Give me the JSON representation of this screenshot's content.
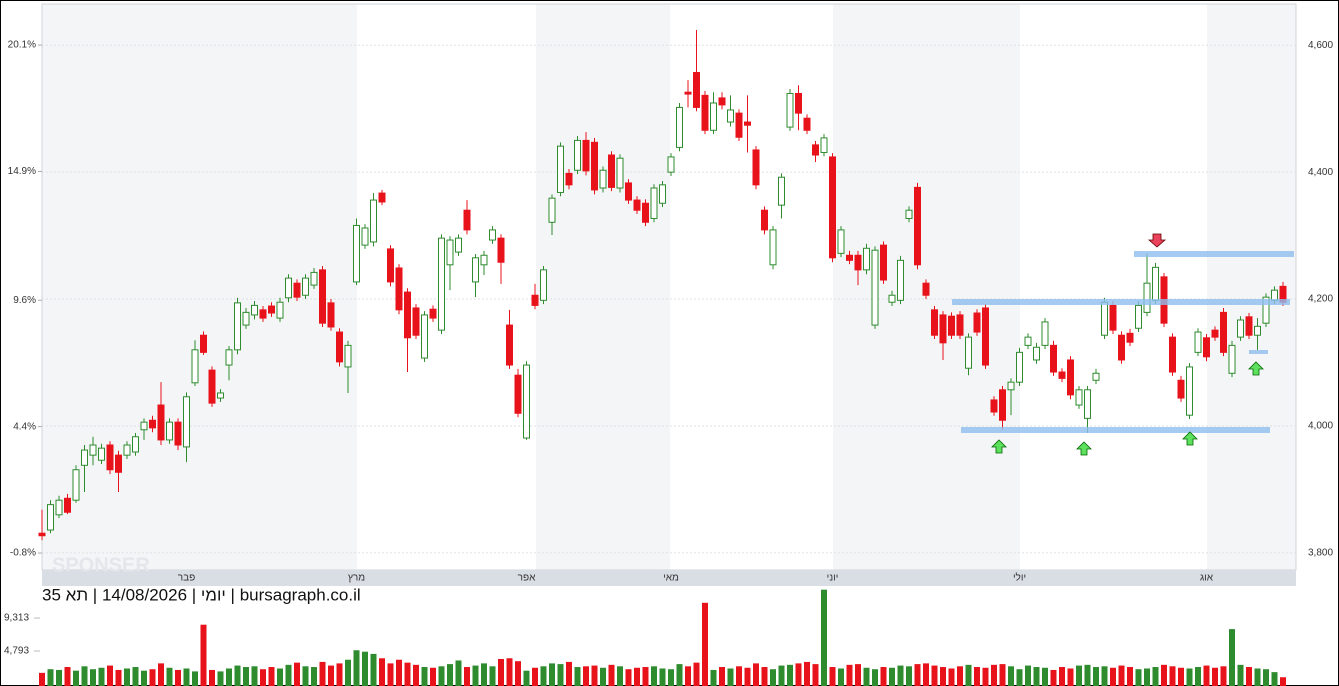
{
  "chart_data": {
    "type": "candlestick",
    "caption": "יומי | 14/08/2026 | תא 35 | bursagraph.co.il",
    "watermark": "SPONSER",
    "categories": [
      null,
      null,
      null,
      null,
      null,
      null,
      null,
      null,
      null,
      null,
      null,
      null,
      null,
      null,
      null,
      null,
      null,
      "פבר",
      null,
      null,
      null,
      null,
      null,
      null,
      null,
      null,
      null,
      null,
      null,
      null,
      null,
      null,
      null,
      null,
      null,
      null,
      null,
      "מרץ",
      null,
      null,
      null,
      null,
      null,
      null,
      null,
      null,
      null,
      null,
      null,
      null,
      null,
      null,
      null,
      null,
      null,
      null,
      null,
      "אפר",
      null,
      null,
      null,
      null,
      null,
      null,
      null,
      null,
      null,
      null,
      null,
      null,
      null,
      null,
      null,
      null,
      "מאי",
      null,
      null,
      null,
      null,
      null,
      null,
      null,
      null,
      null,
      null,
      null,
      null,
      null,
      null,
      null,
      null,
      null,
      null,
      "יוני",
      null,
      null,
      null,
      null,
      null,
      null,
      null,
      null,
      null,
      null,
      null,
      null,
      null,
      null,
      null,
      null,
      null,
      null,
      null,
      null,
      null,
      "יולי",
      null,
      null,
      null,
      null,
      null,
      null,
      null,
      null,
      null,
      null,
      null,
      null,
      null,
      null,
      null,
      null,
      null,
      null,
      null,
      null,
      null,
      "אוג",
      null,
      null,
      null,
      null,
      null,
      null,
      null,
      null,
      null
    ],
    "open": [
      3831,
      3836,
      3860,
      3886,
      3883,
      3938,
      3954,
      3946,
      3970,
      3954,
      3954,
      3959,
      3994,
      4009,
      4033,
      3978,
      4006,
      3967,
      4068,
      4143,
      4088,
      4044,
      4096,
      4120,
      4159,
      4175,
      4183,
      4189,
      4170,
      4202,
      4225,
      4206,
      4222,
      4246,
      4194,
      4148,
      4093,
      4227,
      4285,
      4290,
      4367,
      4279,
      4249,
      4211,
      4186,
      4107,
      4184,
      4151,
      4254,
      4274,
      4340,
      4227,
      4254,
      4293,
      4296,
      4159,
      4080,
      3981,
      4206,
      4198,
      4321,
      4368,
      4398,
      4403,
      4450,
      4447,
      4375,
      4427,
      4375,
      4383,
      4356,
      4351,
      4327,
      4351,
      4400,
      4439,
      4526,
      4557,
      4521,
      4466,
      4517,
      4479,
      4493,
      4479,
      4435,
      4340,
      4254,
      4348,
      4471,
      4524,
      4485,
      4443,
      4431,
      4424,
      4272,
      4269,
      4269,
      4246,
      4159,
      4285,
      4195,
      4198,
      4327,
      4376,
      4225,
      4183,
      4175,
      4173,
      4175,
      4091,
      4178,
      4186,
      4041,
      4057,
      4057,
      4069,
      4127,
      4104,
      4127,
      4127,
      4085,
      4104,
      4033,
      4012,
      4072,
      4143,
      4190,
      4143,
      4146,
      4154,
      4179,
      4198,
      4235,
      4140,
      4072,
      4017,
      4116,
      4139,
      4151,
      4179,
      4083,
      4140,
      4172,
      4143,
      4162,
      4198,
      4220
    ],
    "high": [
      3868,
      3883,
      3890,
      3893,
      3938,
      3970,
      3983,
      3972,
      3976,
      3961,
      3976,
      3989,
      4012,
      4016,
      4069,
      4012,
      4012,
      4053,
      4135,
      4149,
      4094,
      4058,
      4126,
      4202,
      4186,
      4197,
      4189,
      4195,
      4202,
      4239,
      4231,
      4239,
      4249,
      4252,
      4200,
      4154,
      4134,
      4327,
      4318,
      4367,
      4372,
      4285,
      4255,
      4217,
      4192,
      4181,
      4190,
      4302,
      4299,
      4302,
      4356,
      4271,
      4276,
      4315,
      4302,
      4183,
      4090,
      4102,
      4224,
      4252,
      4365,
      4447,
      4405,
      4457,
      4463,
      4454,
      4409,
      4433,
      4428,
      4389,
      4362,
      4357,
      4381,
      4386,
      4430,
      4509,
      4545,
      4624,
      4528,
      4526,
      4526,
      4521,
      4499,
      4521,
      4441,
      4346,
      4315,
      4398,
      4531,
      4537,
      4491,
      4449,
      4460,
      4430,
      4315,
      4276,
      4276,
      4287,
      4283,
      4291,
      4213,
      4268,
      4346,
      4383,
      4231,
      4189,
      4181,
      4179,
      4181,
      4146,
      4184,
      4192,
      4047,
      4063,
      4075,
      4123,
      4146,
      4131,
      4170,
      4134,
      4091,
      4110,
      4063,
      4063,
      4090,
      4202,
      4197,
      4149,
      4153,
      4197,
      4272,
      4257,
      4241,
      4146,
      4079,
      4099,
      4154,
      4145,
      4157,
      4186,
      4134,
      4173,
      4178,
      4170,
      4209,
      4220,
      4227
    ],
    "low": [
      3820,
      3831,
      3855,
      3861,
      3879,
      3896,
      3938,
      3940,
      3924,
      3896,
      3948,
      3953,
      3978,
      3990,
      3970,
      3972,
      3962,
      3943,
      4063,
      4112,
      4030,
      4038,
      4072,
      4113,
      4153,
      4168,
      4164,
      4172,
      4164,
      4195,
      4197,
      4200,
      4216,
      4156,
      4150,
      4094,
      4052,
      4222,
      4279,
      4283,
      4348,
      4220,
      4176,
      4085,
      4137,
      4101,
      4164,
      4145,
      4214,
      4268,
      4302,
      4203,
      4238,
      4287,
      4224,
      4090,
      4014,
      3978,
      4184,
      4192,
      4301,
      4362,
      4373,
      4397,
      4395,
      4365,
      4368,
      4370,
      4368,
      4350,
      4334,
      4315,
      4321,
      4345,
      4394,
      4433,
      4502,
      4496,
      4460,
      4460,
      4499,
      4472,
      4449,
      4431,
      4373,
      4302,
      4247,
      4327,
      4465,
      4466,
      4460,
      4416,
      4425,
      4258,
      4266,
      4255,
      4222,
      4239,
      4153,
      4224,
      4189,
      4192,
      4321,
      4247,
      4200,
      4137,
      4104,
      4137,
      4137,
      4080,
      4142,
      4090,
      4016,
      3994,
      4017,
      4063,
      4121,
      4098,
      4121,
      4079,
      4069,
      4042,
      4027,
      3989,
      4066,
      4137,
      4145,
      4098,
      4126,
      4148,
      4173,
      4192,
      4156,
      4079,
      4038,
      4011,
      4110,
      4102,
      4134,
      4110,
      4077,
      4134,
      4137,
      4120,
      4156,
      4192,
      4189
    ],
    "close": [
      3827,
      3876,
      3883,
      3864,
      3931,
      3962,
      3970,
      3965,
      3931,
      3927,
      3970,
      3983,
      4006,
      3997,
      3978,
      4006,
      3970,
      4046,
      4120,
      4116,
      4036,
      4052,
      4120,
      4194,
      4179,
      4190,
      4170,
      4178,
      4195,
      4233,
      4203,
      4233,
      4242,
      4162,
      4156,
      4101,
      4127,
      4316,
      4312,
      4356,
      4353,
      4227,
      4183,
      4139,
      4143,
      4175,
      4170,
      4296,
      4293,
      4296,
      4309,
      4265,
      4269,
      4309,
      4258,
      4096,
      4020,
      4096,
      4190,
      4246,
      4359,
      4441,
      4380,
      4450,
      4402,
      4372,
      4403,
      4376,
      4422,
      4356,
      4340,
      4321,
      4375,
      4380,
      4424,
      4502,
      4523,
      4502,
      4466,
      4509,
      4506,
      4498,
      4455,
      4474,
      4380,
      4309,
      4309,
      4392,
      4524,
      4493,
      4466,
      4427,
      4454,
      4265,
      4309,
      4261,
      4246,
      4280,
      4277,
      4230,
      4206,
      4261,
      4340,
      4254,
      4206,
      4143,
      4131,
      4143,
      4143,
      4140,
      4148,
      4096,
      4022,
      4009,
      4069,
      4116,
      4140,
      4124,
      4164,
      4085,
      4075,
      4049,
      4057,
      4057,
      4083,
      4195,
      4151,
      4104,
      4132,
      4190,
      4225,
      4250,
      4162,
      4085,
      4044,
      4093,
      4148,
      4109,
      4140,
      4116,
      4127,
      4167,
      4143,
      4157,
      4203,
      4214,
      4195
    ],
    "up_color": "#2e8b2e",
    "down_color": "#e8121b",
    "ylim": [
      3773,
      4665
    ],
    "yticks": [
      {
        "value": 3800,
        "label": "3,800"
      },
      {
        "value": 4000,
        "label": "4,000"
      },
      {
        "value": 4200,
        "label": "4,200"
      },
      {
        "value": 4400,
        "label": "4,400"
      },
      {
        "value": 4600,
        "label": "4,600"
      }
    ],
    "y2lim": [
      -1.5,
      21.79
    ],
    "y2ticks": [
      {
        "value": -0.8,
        "label": "-0.8%"
      },
      {
        "value": 4.4,
        "label": "4.4%"
      },
      {
        "value": 9.6,
        "label": "9.6%"
      },
      {
        "value": 14.9,
        "label": "14.9%"
      },
      {
        "value": 20.1,
        "label": "20.1%"
      }
    ],
    "grid": true,
    "volume": {
      "values": [
        1800,
        2300,
        2200,
        2600,
        2100,
        2700,
        2300,
        2500,
        2800,
        2200,
        2400,
        2600,
        2100,
        2300,
        3100,
        2500,
        2200,
        2400,
        2000,
        8400,
        2200,
        2000,
        2400,
        2800,
        2600,
        2700,
        2300,
        2600,
        2400,
        2900,
        3200,
        2700,
        2600,
        3300,
        2800,
        3100,
        3600,
        4900,
        4700,
        4400,
        3800,
        3100,
        3600,
        3200,
        2900,
        2600,
        2500,
        2700,
        3000,
        3500,
        2600,
        2800,
        3100,
        2700,
        3700,
        3800,
        3400,
        2100,
        2500,
        2700,
        3100,
        3000,
        3300,
        2600,
        2700,
        2800,
        2500,
        2900,
        2700,
        2300,
        2500,
        2600,
        2700,
        2400,
        2300,
        3000,
        2700,
        3200,
        11400,
        2200,
        2600,
        2400,
        2700,
        2500,
        3100,
        2600,
        2300,
        2800,
        2900,
        3100,
        3300,
        3000,
        13200,
        2600,
        2400,
        2900,
        3000,
        2500,
        2300,
        2600,
        2500,
        2800,
        2700,
        3000,
        3100,
        2800,
        2600,
        2400,
        2700,
        2900,
        2600,
        2500,
        2900,
        3000,
        2700,
        2300,
        2800,
        2600,
        2500,
        2200,
        2600,
        2400,
        2800,
        2900,
        2600,
        2700,
        2500,
        2800,
        2600,
        2300,
        2400,
        2600,
        2900,
        2700,
        2500,
        2400,
        2600,
        2800,
        2500,
        2700,
        7800,
        2900,
        2600,
        2400,
        2300,
        1900,
        1200
      ],
      "ylim": [
        0,
        13430
      ],
      "yticks": [
        {
          "value": 4793,
          "label": "4,793"
        },
        {
          "value": 9313,
          "label": "9,313"
        }
      ]
    }
  }
}
